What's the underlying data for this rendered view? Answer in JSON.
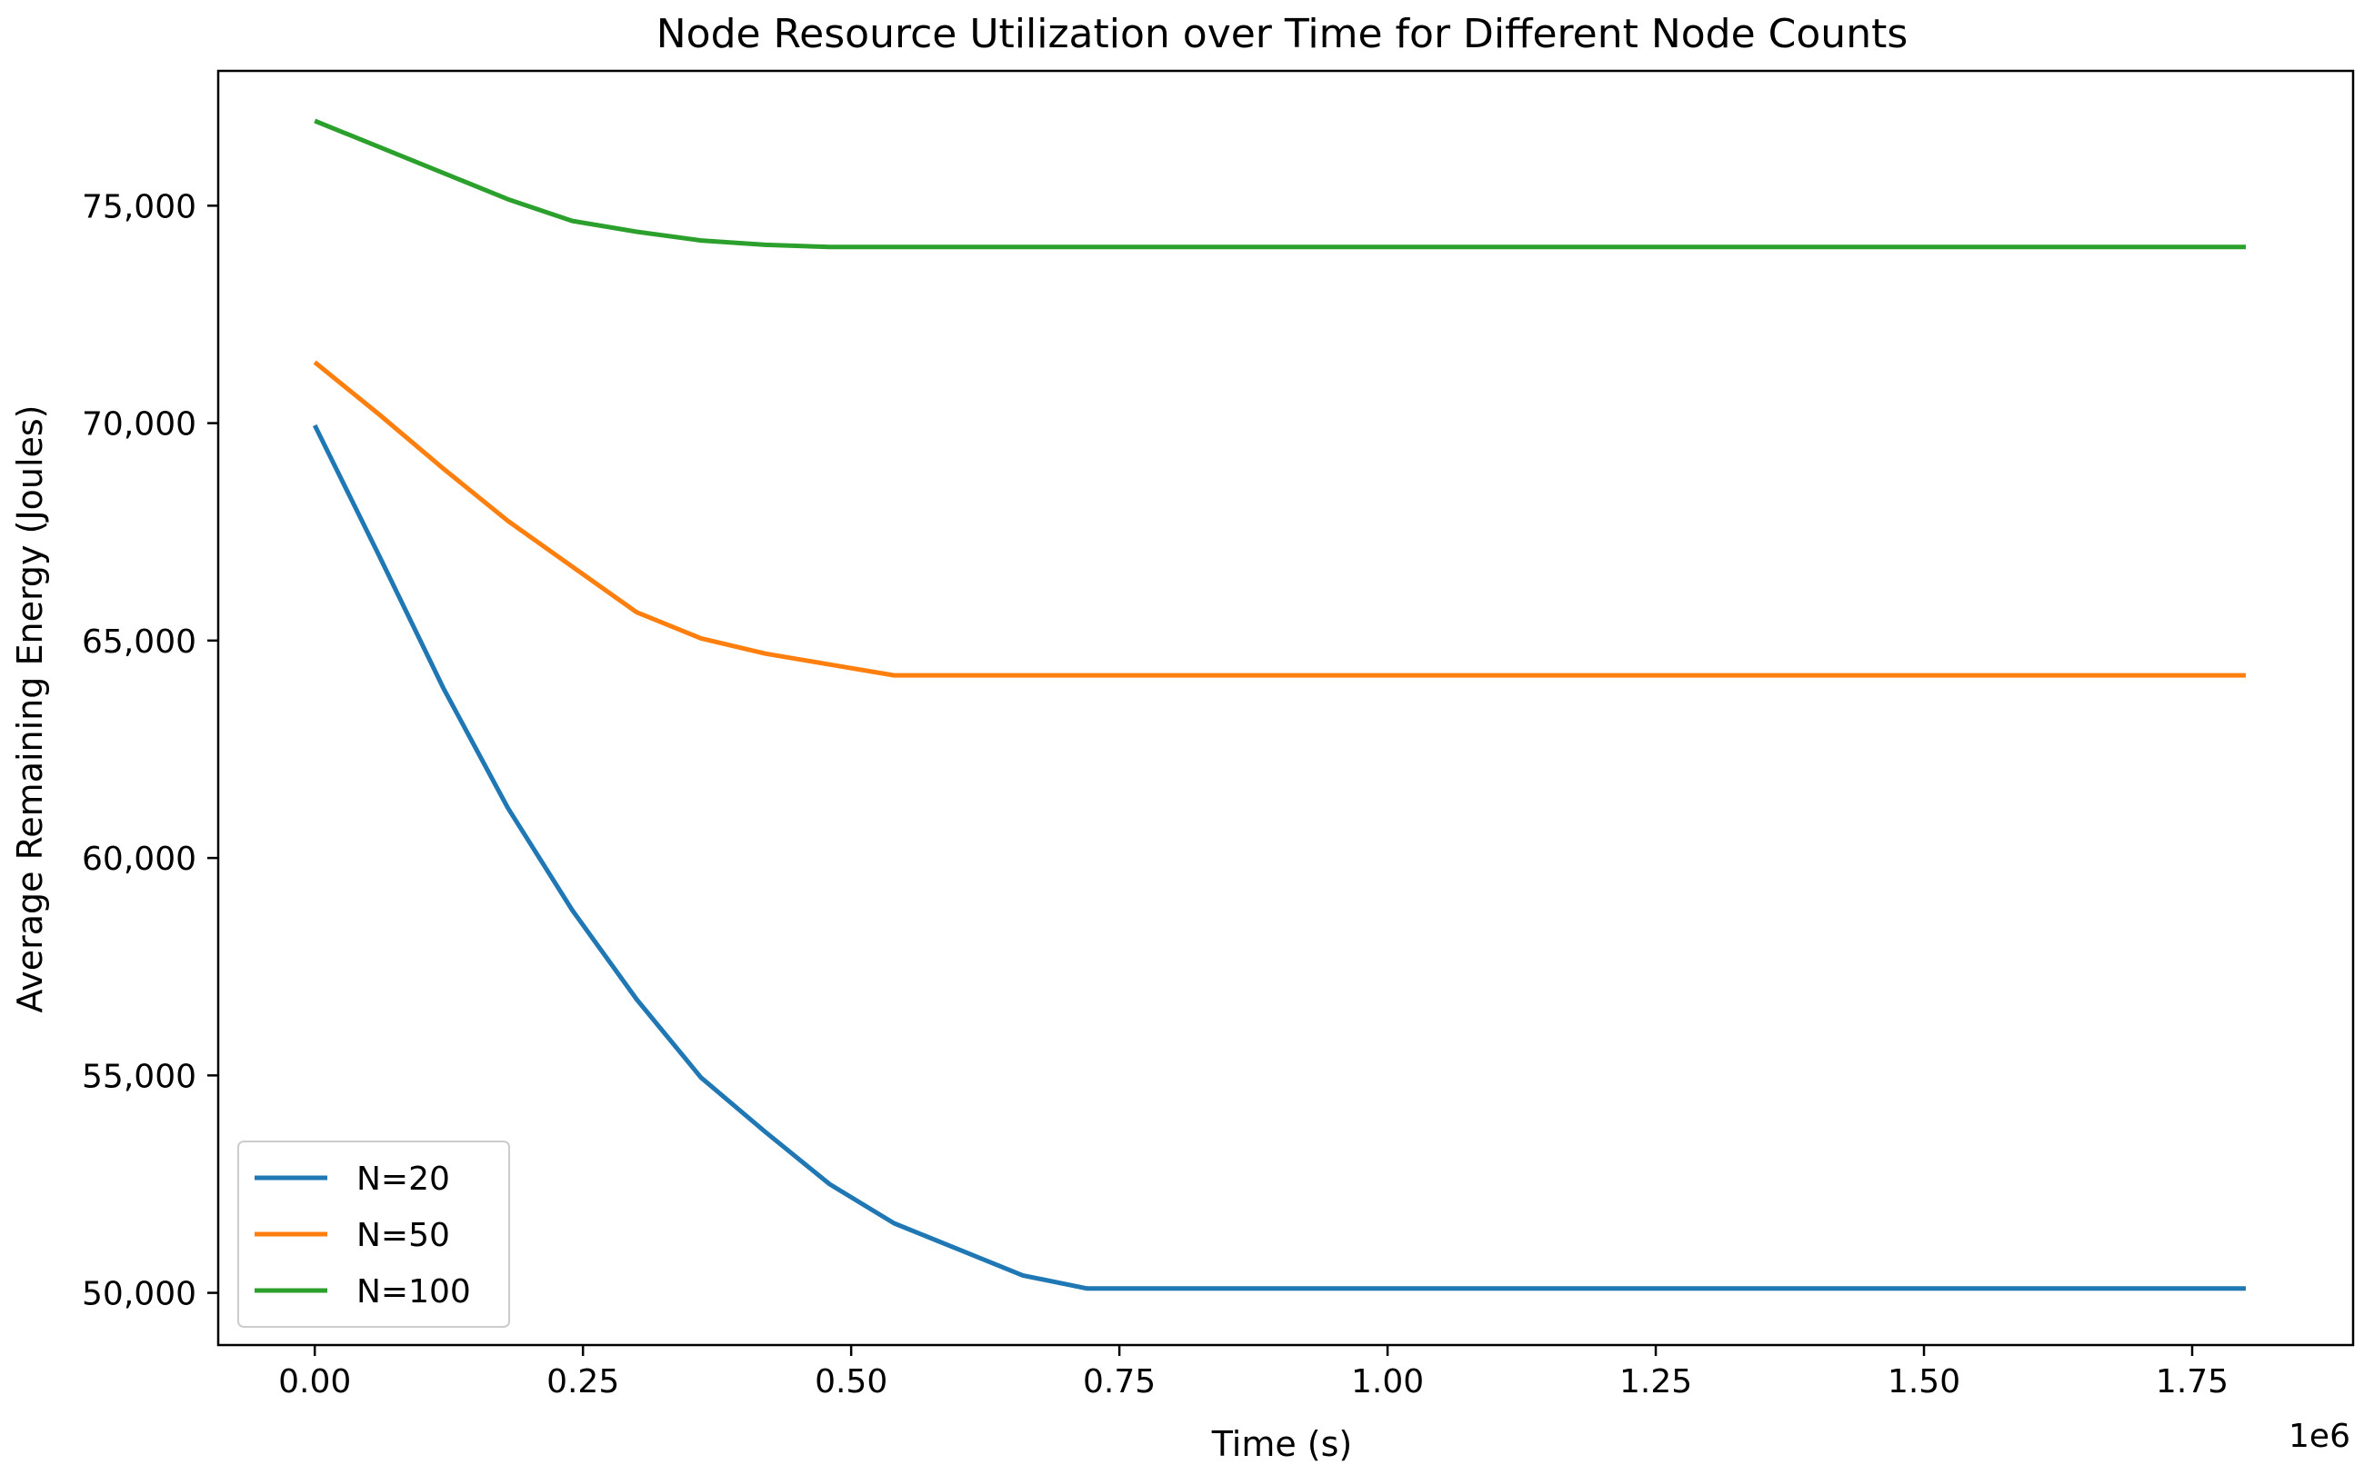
{
  "chart_data": {
    "type": "line",
    "title": "Node Resource Utilization over Time for Different Node Counts",
    "xlabel": "Time (s)",
    "ylabel": "Average Remaining Energy (Joules)",
    "x_offset_label": "1e6",
    "xlim": [
      -0.09,
      1.9
    ],
    "ylim": [
      48800,
      78100
    ],
    "x_ticks": [
      0.0,
      0.25,
      0.5,
      0.75,
      1.0,
      1.25,
      1.5,
      1.75
    ],
    "x_tick_labels": [
      "0.00",
      "0.25",
      "0.50",
      "0.75",
      "1.00",
      "1.25",
      "1.50",
      "1.75"
    ],
    "y_ticks": [
      50000,
      55000,
      60000,
      65000,
      70000,
      75000
    ],
    "y_tick_labels": [
      "50,000",
      "55,000",
      "60,000",
      "65,000",
      "70,000",
      "75,000"
    ],
    "grid": false,
    "legend_position": "lower-left",
    "series": [
      {
        "name": "N=20",
        "color": "#1f77b4",
        "x": [
          0.0,
          0.06,
          0.12,
          0.18,
          0.24,
          0.3,
          0.36,
          0.42,
          0.48,
          0.54,
          0.6,
          0.66,
          0.72,
          0.78,
          0.84,
          0.9,
          1.0,
          1.2,
          1.4,
          1.6,
          1.8
        ],
        "y": [
          69950,
          66950,
          63900,
          61150,
          58800,
          56750,
          54950,
          53700,
          52500,
          51600,
          51000,
          50400,
          50100,
          50100,
          50100,
          50100,
          50100,
          50100,
          50100,
          50100,
          50100
        ]
      },
      {
        "name": "N=50",
        "color": "#ff7f0e",
        "x": [
          0.0,
          0.06,
          0.12,
          0.18,
          0.24,
          0.3,
          0.36,
          0.42,
          0.48,
          0.54,
          0.6,
          0.8,
          1.0,
          1.2,
          1.4,
          1.6,
          1.8
        ],
        "y": [
          71400,
          70200,
          68950,
          67750,
          66700,
          65650,
          65050,
          64700,
          64450,
          64200,
          64200,
          64200,
          64200,
          64200,
          64200,
          64200,
          64200
        ]
      },
      {
        "name": "N=100",
        "color": "#2ca02c",
        "x": [
          0.0,
          0.06,
          0.12,
          0.18,
          0.24,
          0.3,
          0.36,
          0.42,
          0.48,
          0.54,
          0.6,
          0.8,
          1.0,
          1.2,
          1.4,
          1.6,
          1.8
        ],
        "y": [
          76950,
          76350,
          75750,
          75150,
          74650,
          74400,
          74200,
          74100,
          74050,
          74050,
          74050,
          74050,
          74050,
          74050,
          74050,
          74050,
          74050
        ]
      }
    ]
  }
}
